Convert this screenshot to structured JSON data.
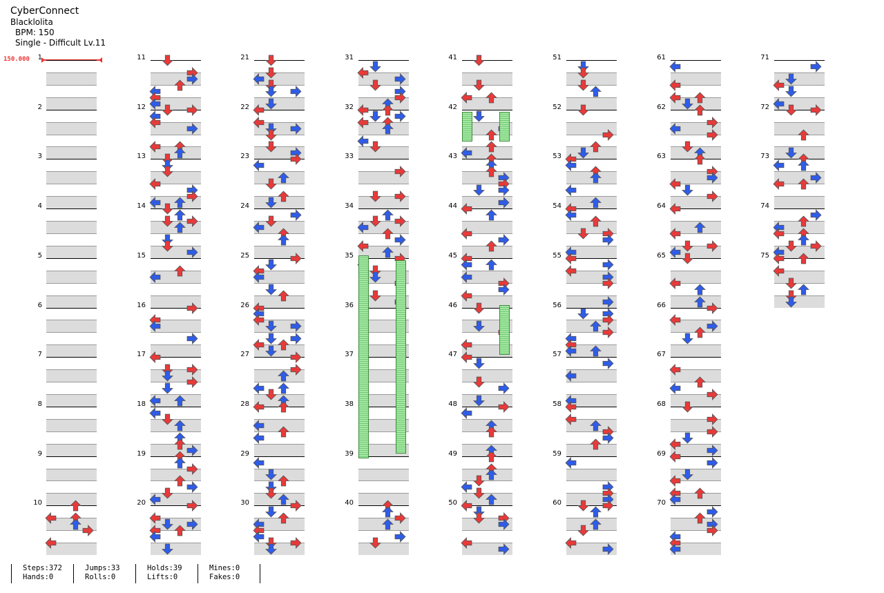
{
  "header": {
    "title": "CyberConnect",
    "artist": "Blacklolita",
    "bpm": "BPM: 150",
    "difficulty": "Single - Difficult Lv.11"
  },
  "bpm_marker": "150.000",
  "colors": {
    "quarter": "#e83a3a",
    "eighth": "#2f5ce8",
    "sixteenth": "#f2d92a",
    "twelfth": "#b03ee8",
    "hold": "#7ad67a",
    "shade": "#dcdcdc"
  },
  "measures": [
    "1",
    "2",
    "3",
    "4",
    "5",
    "6",
    "7",
    "8",
    "9",
    "10",
    "11",
    "12",
    "13",
    "14",
    "15",
    "16",
    "17",
    "18",
    "19",
    "20",
    "21",
    "22",
    "23",
    "24",
    "25",
    "26",
    "27",
    "28",
    "29",
    "30",
    "31",
    "32",
    "33",
    "34",
    "35",
    "36",
    "37",
    "38",
    "39",
    "40",
    "41",
    "42",
    "43",
    "44",
    "45",
    "46",
    "47",
    "48",
    "49",
    "50",
    "51",
    "52",
    "53",
    "54",
    "55",
    "56",
    "57",
    "58",
    "59",
    "60",
    "61",
    "62",
    "63",
    "64",
    "65",
    "66",
    "67",
    "68",
    "69",
    "70",
    "71",
    "72",
    "73",
    "74",
    "75"
  ],
  "stats": {
    "steps": "Steps:372",
    "hands": "Hands:0",
    "jumps": "Jumps:33",
    "rolls": "Rolls:0",
    "holds": "Holds:39",
    "lifts": "Lifts:0",
    "mines": "Mines:0",
    "fakes": "Fakes:0"
  }
}
